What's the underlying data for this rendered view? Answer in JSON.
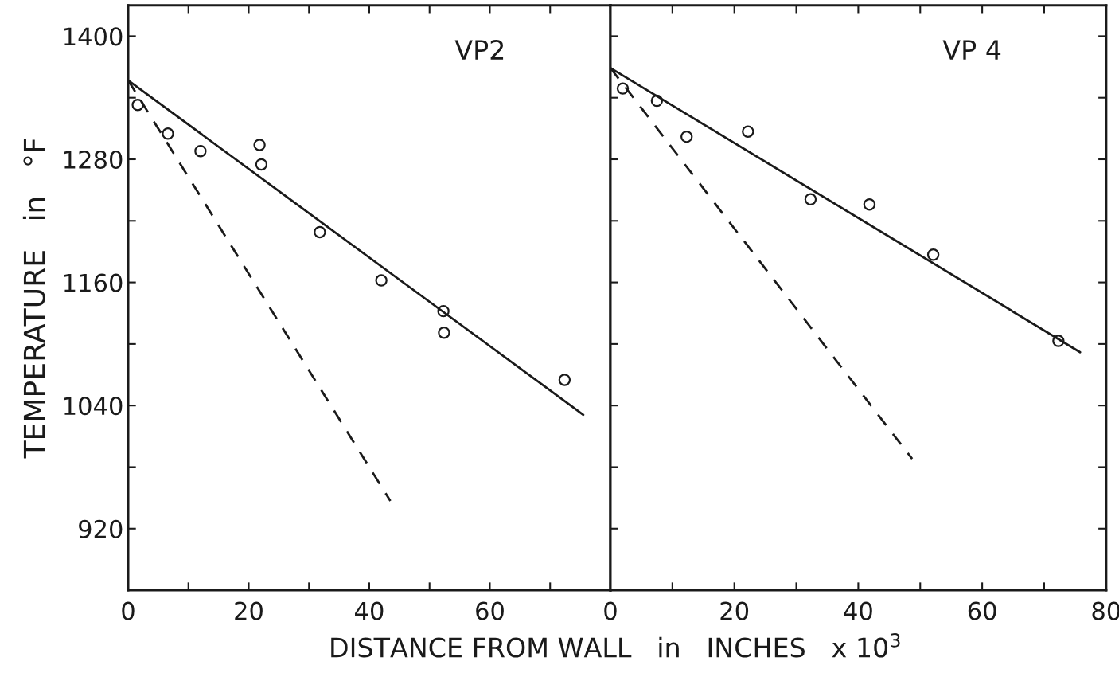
{
  "chart_data": [
    {
      "type": "scatter",
      "title": "VP2",
      "xlabel": "DISTANCE FROM WALL   in   INCHES   x 10$^{3}$",
      "ylabel": "TEMPERATURE   in   °F",
      "xlim": [
        0,
        80
      ],
      "ylim": [
        860,
        1430
      ],
      "xticks": [
        0,
        {
          "value": 10,
          "label": null
        },
        20,
        {
          "value": 30,
          "label": null
        },
        40,
        {
          "value": 50,
          "label": null
        },
        60,
        {
          "value": 70,
          "label": null
        },
        {
          "value": 80,
          "label": null
        }
      ],
      "yticks": [
        {
          "value": 920,
          "label": "920"
        },
        {
          "value": 980,
          "label": null
        },
        1040,
        {
          "value": 1100,
          "label": null
        },
        1160,
        {
          "value": 1220,
          "label": null
        },
        1280,
        {
          "value": 1340,
          "label": null
        },
        1400
      ],
      "grid": false,
      "legend": false,
      "series": [
        {
          "marker": "circle",
          "color": "#1a1a1a",
          "x": [
            1.6,
            6.6,
            12.0,
            21.8,
            22.1,
            31.8,
            42.0,
            52.3,
            52.4,
            72.4
          ],
          "values": [
            1333,
            1305,
            1288,
            1294,
            1275,
            1209,
            1162,
            1132,
            1111,
            1065
          ]
        },
        {
          "type": "line",
          "color": "#1a1a1a",
          "line_style": "solid",
          "x": [
            0,
            75.5
          ],
          "values": [
            1357,
            1031
          ]
        },
        {
          "type": "line",
          "color": "#1a1a1a",
          "line_style": "dashed",
          "x": [
            0,
            43.5
          ],
          "values": [
            1357,
            947
          ]
        }
      ]
    },
    {
      "type": "scatter",
      "title": "VP 4",
      "tick_labels": "x",
      "xlim": [
        0,
        80
      ],
      "ylim": [
        860,
        1430
      ],
      "xticks": [
        0,
        {
          "value": 10,
          "label": null
        },
        20,
        {
          "value": 30,
          "label": null
        },
        40,
        {
          "value": 50,
          "label": null
        },
        60,
        {
          "value": 70,
          "label": null
        },
        80
      ],
      "yticks": [
        920,
        980,
        1040,
        1100,
        1160,
        1220,
        1280,
        1340,
        1400
      ],
      "grid": false,
      "legend": false,
      "series": [
        {
          "marker": "circle",
          "color": "#1a1a1a",
          "x": [
            2.0,
            7.5,
            12.3,
            22.2,
            32.3,
            41.8,
            52.1,
            72.3
          ],
          "values": [
            1349,
            1337,
            1302,
            1307,
            1241,
            1236,
            1187,
            1103
          ]
        },
        {
          "type": "line",
          "color": "#1a1a1a",
          "line_style": "solid",
          "x": [
            0,
            75.8
          ],
          "values": [
            1369,
            1092
          ]
        },
        {
          "type": "line",
          "color": "#1a1a1a",
          "line_style": "dashed",
          "x": [
            0,
            48.7
          ],
          "values": [
            1369,
            988
          ]
        }
      ]
    }
  ]
}
